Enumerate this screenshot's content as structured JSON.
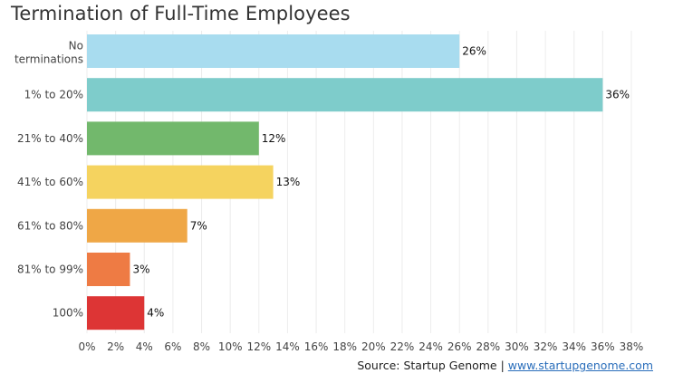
{
  "chart_data": {
    "type": "bar",
    "orientation": "horizontal",
    "title": "Termination of Full-Time Employees",
    "categories": [
      "No terminations",
      "1% to 20%",
      "21% to 40%",
      "41% to 60%",
      "61% to 80%",
      "81% to 99%",
      "100%"
    ],
    "values": [
      26,
      36,
      12,
      13,
      7,
      3,
      4
    ],
    "value_labels": [
      "26%",
      "36%",
      "12%",
      "13%",
      "7%",
      "3%",
      "4%"
    ],
    "colors": [
      "#a8dcef",
      "#7ecccb",
      "#72b86c",
      "#f5d35f",
      "#efa746",
      "#ee7b44",
      "#dd3535"
    ],
    "xlim": [
      0,
      38
    ],
    "x_ticks": [
      0,
      2,
      4,
      6,
      8,
      10,
      12,
      14,
      16,
      18,
      20,
      22,
      24,
      26,
      28,
      30,
      32,
      34,
      36,
      38
    ],
    "x_tick_labels": [
      "0%",
      "2%",
      "4%",
      "6%",
      "8%",
      "10%",
      "12%",
      "14%",
      "16%",
      "18%",
      "20%",
      "22%",
      "24%",
      "26%",
      "28%",
      "30%",
      "32%",
      "34%",
      "36%",
      "38%"
    ],
    "xlabel": "",
    "ylabel": "",
    "grid": "vertical",
    "legend": "none"
  },
  "source": {
    "text": "Source: Startup Genome | ",
    "link_text": "www.startupgenome.com"
  }
}
